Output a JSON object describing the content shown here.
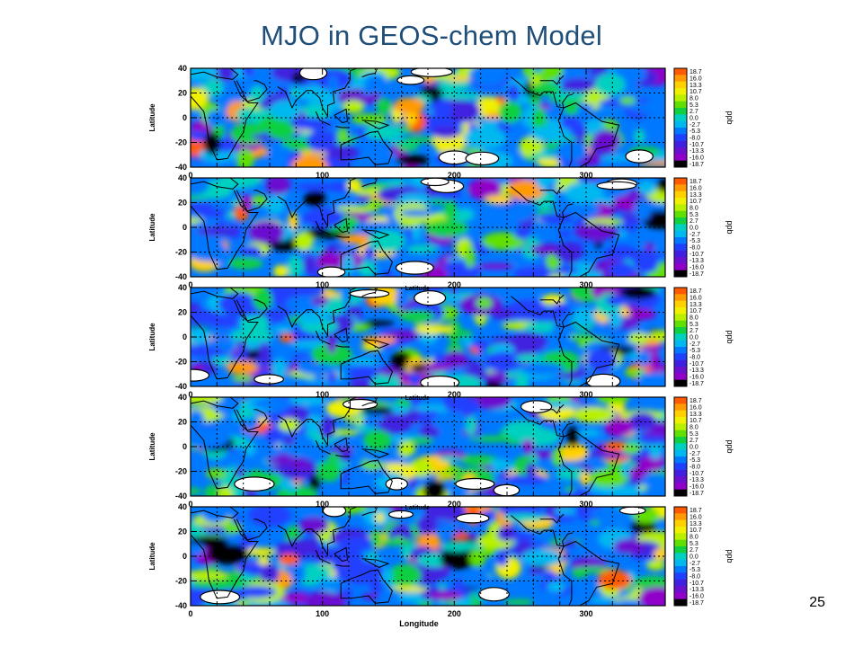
{
  "slide": {
    "title": "MJO in GEOS-chem Model",
    "page_number": "25"
  },
  "chart_data": {
    "type": "heatmap",
    "subtype": "filled-contour map panels",
    "panel_count": 5,
    "xlabel": "Longitude",
    "ylabel": "Latitude",
    "x_range": [
      0,
      360
    ],
    "y_range": [
      -40,
      40
    ],
    "x_ticks": [
      "0",
      "100",
      "200",
      "300"
    ],
    "x_tick_values": [
      0,
      100,
      200,
      300
    ],
    "y_ticks": [
      "40",
      "20",
      "0",
      "-20",
      "-40"
    ],
    "y_tick_values": [
      40,
      20,
      0,
      -20,
      -40
    ],
    "grid": true,
    "colorbar_unit": "ppb",
    "colorbar_levels": [
      "18.7",
      "16.0",
      "13.3",
      "10.7",
      "8.0",
      "5.3",
      "2.7",
      "0.0",
      "-2.7",
      "-5.3",
      "-8.0",
      "-10.7",
      "-13.3",
      "-16.0",
      "-18.7"
    ],
    "colorbar_colors": [
      "#ff5a00",
      "#ff9a00",
      "#ffd000",
      "#f0f000",
      "#b8f000",
      "#60e000",
      "#10d040",
      "#00d0c0",
      "#00b8f0",
      "#0078ff",
      "#2040ff",
      "#4020e0",
      "#6a10d0",
      "#9000c8",
      "#000000"
    ],
    "stray_axis_label": "Latitude"
  }
}
